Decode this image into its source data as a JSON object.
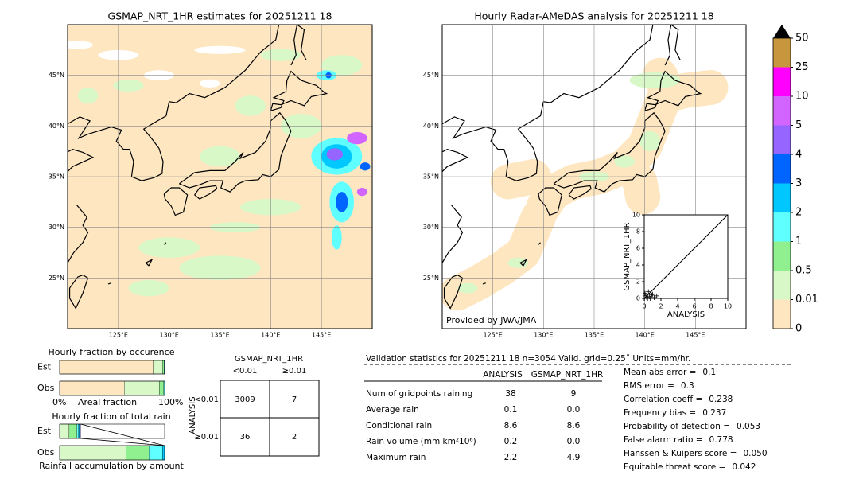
{
  "maps": [
    {
      "title": "GSMAP_NRT_1HR estimates for 20251211 18",
      "xlim": [
        120,
        150
      ],
      "ylim": [
        20,
        50
      ],
      "xticks": [
        {
          "value": 125,
          "label": "125°E"
        },
        {
          "value": 130,
          "label": "130°E"
        },
        {
          "value": 135,
          "label": "135°E"
        },
        {
          "value": 140,
          "label": "140°E"
        },
        {
          "value": 145,
          "label": "145°E"
        }
      ],
      "yticks": [
        {
          "value": 25,
          "label": "25°N"
        },
        {
          "value": 30,
          "label": "30°N"
        },
        {
          "value": 35,
          "label": "35°N"
        },
        {
          "value": 40,
          "label": "40°N"
        },
        {
          "value": 45,
          "label": "45°N"
        }
      ]
    },
    {
      "title": "Hourly Radar-AMeDAS analysis for 20251211 18",
      "xlim": [
        120,
        150
      ],
      "ylim": [
        20,
        50
      ],
      "xticks": [
        {
          "value": 125,
          "label": "125°E"
        },
        {
          "value": 130,
          "label": "130°E"
        },
        {
          "value": 135,
          "label": "135°E"
        },
        {
          "value": 140,
          "label": "140°E"
        },
        {
          "value": 145,
          "label": "145°E"
        }
      ],
      "yticks": [
        {
          "value": 25,
          "label": "25°N"
        },
        {
          "value": 30,
          "label": "30°N"
        },
        {
          "value": 35,
          "label": "35°N"
        },
        {
          "value": 40,
          "label": "40°N"
        },
        {
          "value": 45,
          "label": "45°N"
        }
      ],
      "credit": "Provided by JWA/JMA"
    }
  ],
  "colorbar": {
    "levels": [
      0,
      0.01,
      0.5,
      1,
      2,
      3,
      4,
      5,
      10,
      25,
      50
    ],
    "colors": [
      "#fde6c0",
      "#d8f8c8",
      "#90f090",
      "#60ffff",
      "#00c8ff",
      "#0064ff",
      "#9664ff",
      "#d264ff",
      "#ff00ff",
      "#c8963c"
    ]
  },
  "scatter": {
    "xlabel": "ANALYSIS",
    "ylabel": "GSMAP_NRT_1HR",
    "xlim": [
      0,
      10
    ],
    "ylim": [
      0,
      10
    ],
    "xticks": [
      0,
      2,
      4,
      6,
      8,
      10
    ],
    "yticks": [
      0,
      2,
      4,
      6,
      8,
      10
    ],
    "x": [
      0.2,
      0.5,
      0.8,
      1.0,
      1.5,
      0.3,
      0.6,
      1.2,
      0.1,
      0.9,
      0.4,
      0.7
    ],
    "y": [
      0.3,
      0.8,
      1.0,
      0.5,
      0.3,
      0.1,
      0.2,
      0.1,
      0.6,
      0.4,
      0.0,
      0.0
    ]
  },
  "fraction_charts": [
    {
      "title": "Hourly fraction by occurence",
      "xlabel": "Areal fraction",
      "xticks": [
        {
          "value": 0,
          "label": "0%"
        },
        {
          "value": 100,
          "label": "100%"
        }
      ],
      "rows": [
        {
          "label": "Est",
          "values": [
            89,
            9,
            1.5,
            0.5
          ]
        },
        {
          "label": "Obs",
          "values": [
            61.5,
            33.5,
            4,
            1
          ]
        }
      ]
    },
    {
      "title": "Hourly fraction of total rain",
      "xlabel": "Rainfall accumulation by amount",
      "rows": [
        {
          "label": "Est",
          "values": [
            0,
            9,
            7.5,
            1.5,
            0.7,
            0.7,
            0.6
          ]
        },
        {
          "label": "Obs",
          "values": [
            0,
            63,
            22,
            13,
            2
          ]
        }
      ]
    }
  ],
  "contingency": {
    "column_title": "GSMAP_NRT_1HR",
    "columns": [
      "<0.01",
      "≥0.01"
    ],
    "row_title": "ANALYSIS",
    "rows": [
      "<0.01",
      "≥0.01"
    ],
    "cells": [
      [
        3009,
        7
      ],
      [
        36,
        2
      ]
    ]
  },
  "statistics": {
    "header": "Validation statistics for 20251211 18  n=3054 Valid. grid=0.25˚ Units=mm/hr.",
    "columns": [
      "ANALYSIS",
      "GSMAP_NRT_1HR"
    ],
    "rows": [
      {
        "label": "Num of gridpoints raining",
        "values": [
          "38",
          "9"
        ]
      },
      {
        "label": "Average rain",
        "values": [
          "0.1",
          "0.0"
        ]
      },
      {
        "label": "Conditional rain",
        "values": [
          "8.6",
          "8.6"
        ]
      },
      {
        "label": "Rain volume (mm km²10⁶)",
        "values": [
          "0.2",
          "0.0"
        ]
      },
      {
        "label": "Maximum rain",
        "values": [
          "2.2",
          "4.9"
        ]
      }
    ],
    "scores": [
      {
        "label": "Mean abs error =",
        "value": "0.1"
      },
      {
        "label": "RMS error =",
        "value": "0.3"
      },
      {
        "label": "Correlation coeff =",
        "value": "0.238"
      },
      {
        "label": "Frequency bias =",
        "value": "0.237"
      },
      {
        "label": "Probability of detection =",
        "value": "0.053"
      },
      {
        "label": "False alarm ratio =",
        "value": "0.778"
      },
      {
        "label": "Hanssen & Kuipers score =",
        "value": "0.050"
      },
      {
        "label": "Equitable threat score =",
        "value": "0.042"
      }
    ]
  }
}
